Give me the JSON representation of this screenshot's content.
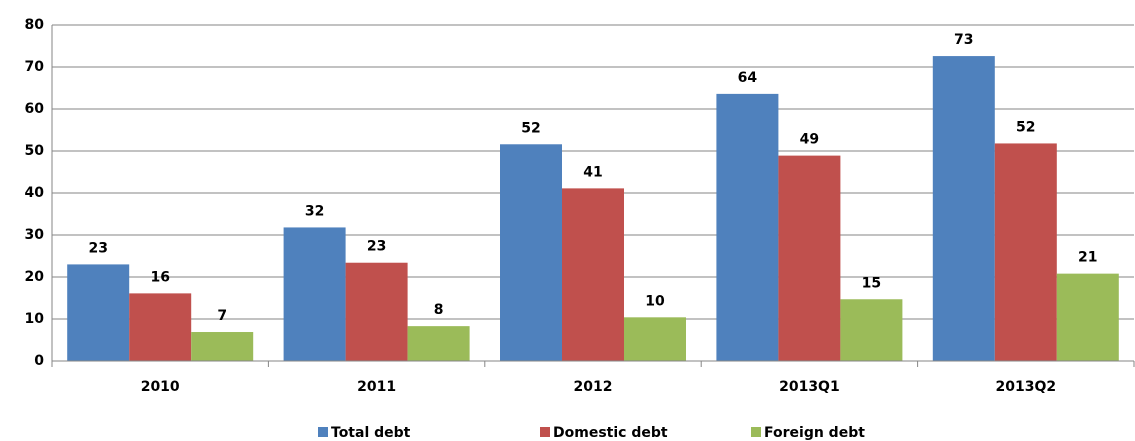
{
  "chart_data": {
    "type": "bar",
    "categories": [
      "2010",
      "2011",
      "2012",
      "2013Q1",
      "2013Q2"
    ],
    "series": [
      {
        "name": "Total debt",
        "color": "#4f81bd",
        "values": [
          23,
          31.8,
          51.6,
          63.6,
          72.6
        ],
        "value_labels": [
          "23",
          "32",
          "52",
          "64",
          "73"
        ]
      },
      {
        "name": "Domestic debt",
        "color": "#c0504d",
        "values": [
          16.1,
          23.4,
          41.1,
          48.9,
          51.8
        ],
        "value_labels": [
          "16",
          "23",
          "41",
          "49",
          "52"
        ]
      },
      {
        "name": "Foreign debt",
        "color": "#9bbb59",
        "values": [
          6.9,
          8.3,
          10.4,
          14.7,
          20.8
        ],
        "value_labels": [
          "7",
          "8",
          "10",
          "15",
          "21"
        ]
      }
    ],
    "ylim": [
      0,
      80
    ],
    "yticks": [
      0,
      10,
      20,
      30,
      40,
      50,
      60,
      70,
      80
    ],
    "grid": true,
    "legend": "bottom"
  }
}
